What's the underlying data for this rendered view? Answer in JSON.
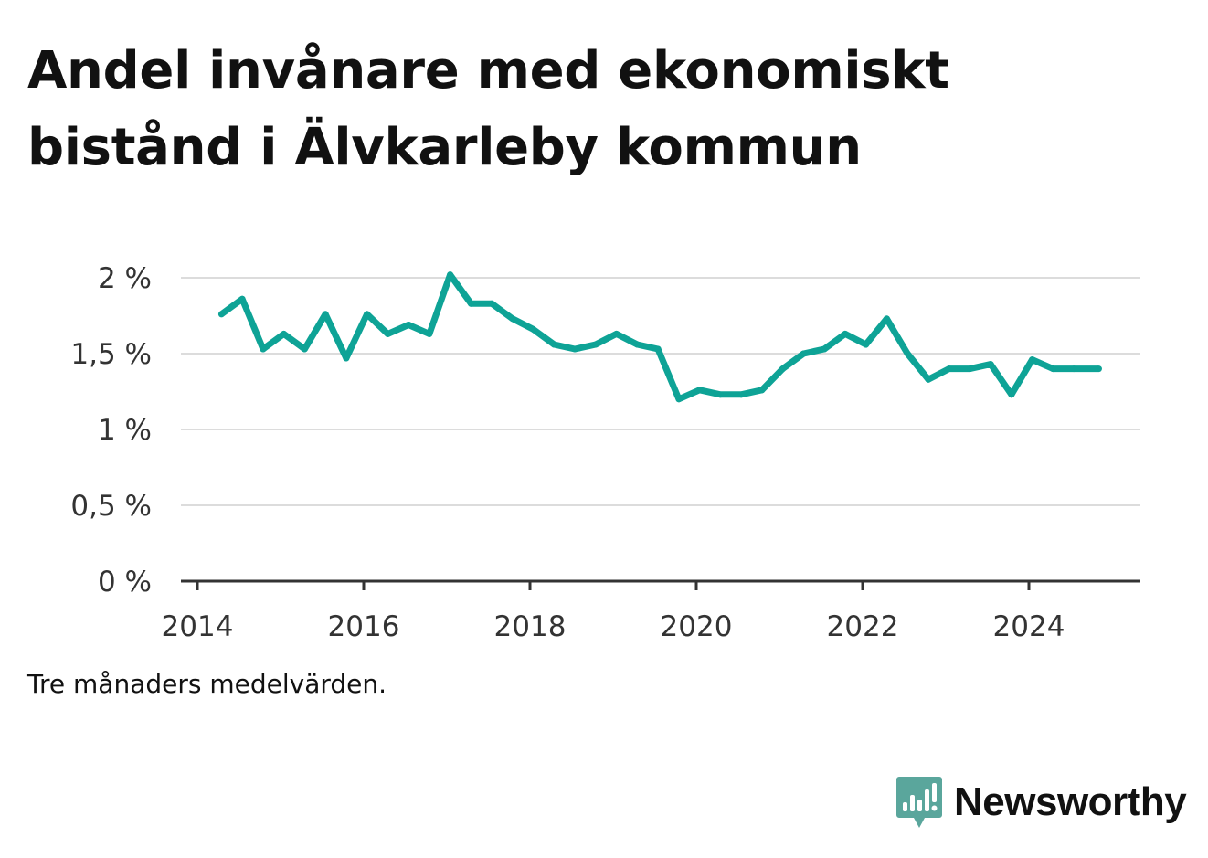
{
  "title": "Andel invånare med ekonomiskt bistånd i Älvkarleby kommun",
  "caption": "Tre månaders medelvärden.",
  "brand": {
    "name": "Newsworthy",
    "icon": "newsworthy-logo-icon",
    "color": "#5aa69c"
  },
  "colors": {
    "line": "#0ea396",
    "grid": "#dcdcdc",
    "axis": "#333333"
  },
  "chart_data": {
    "type": "line",
    "title": "Andel invånare med ekonomiskt bistånd i Älvkarleby kommun",
    "xlabel": "",
    "ylabel": "",
    "ylim": [
      0,
      2
    ],
    "xlim": [
      2014,
      2025.4
    ],
    "y_ticks": [
      0,
      0.5,
      1,
      1.5,
      2
    ],
    "y_tick_labels": [
      "0 %",
      "0,5 %",
      "1 %",
      "1,5 %",
      "2 %"
    ],
    "x_ticks": [
      2014,
      2016,
      2018,
      2020,
      2022,
      2024
    ],
    "x_tick_labels": [
      "2014",
      "2016",
      "2018",
      "2020",
      "2022",
      "2024"
    ],
    "grid": true,
    "series": [
      {
        "name": "Andel invånare med ekonomiskt bistånd",
        "x": [
          2014.29,
          2014.54,
          2014.79,
          2015.04,
          2015.29,
          2015.54,
          2015.79,
          2016.04,
          2016.29,
          2016.54,
          2016.79,
          2017.04,
          2017.29,
          2017.54,
          2017.79,
          2018.04,
          2018.29,
          2018.54,
          2018.79,
          2019.04,
          2019.29,
          2019.54,
          2019.79,
          2020.04,
          2020.29,
          2020.54,
          2020.79,
          2021.04,
          2021.29,
          2021.54,
          2021.79,
          2022.04,
          2022.29,
          2022.54,
          2022.79,
          2023.04,
          2023.29,
          2023.54,
          2023.79,
          2024.04,
          2024.29,
          2024.54,
          2024.84
        ],
        "values": [
          1.76,
          1.86,
          1.53,
          1.63,
          1.53,
          1.76,
          1.47,
          1.76,
          1.63,
          1.69,
          1.63,
          2.02,
          1.83,
          1.83,
          1.73,
          1.66,
          1.56,
          1.53,
          1.56,
          1.63,
          1.56,
          1.53,
          1.2,
          1.26,
          1.23,
          1.23,
          1.26,
          1.4,
          1.5,
          1.53,
          1.63,
          1.56,
          1.73,
          1.5,
          1.33,
          1.4,
          1.4,
          1.43,
          1.23,
          1.46,
          1.4,
          1.4,
          1.4
        ]
      }
    ]
  }
}
